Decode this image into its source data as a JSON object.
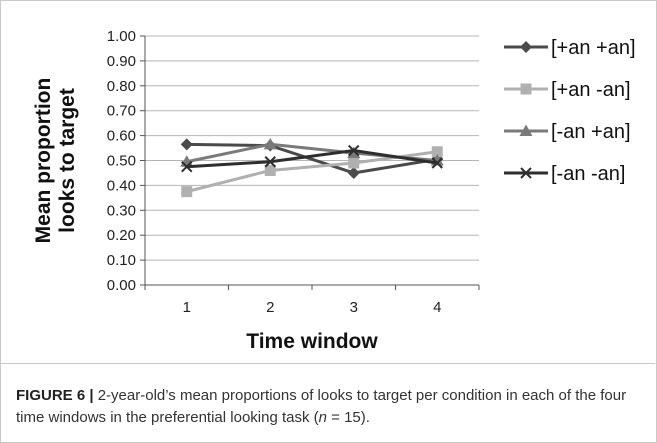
{
  "chart_data": {
    "type": "line",
    "title": "",
    "xlabel": "Time window",
    "ylabel": "Mean proportion looks to target",
    "ylabel_lines": [
      "Mean proportion",
      "looks to target"
    ],
    "categories": [
      "1",
      "2",
      "3",
      "4"
    ],
    "ylim": [
      0,
      1
    ],
    "y_ticks": [
      "0.00",
      "0.10",
      "0.20",
      "0.30",
      "0.40",
      "0.50",
      "0.60",
      "0.70",
      "0.80",
      "0.90",
      "1.00"
    ],
    "grid": true,
    "legend_position": "right",
    "series": [
      {
        "name": "[+an +an]",
        "values": [
          0.565,
          0.56,
          0.45,
          0.505
        ],
        "color": "#4a4a4a",
        "marker": "diamond"
      },
      {
        "name": "[+an -an]",
        "values": [
          0.375,
          0.46,
          0.49,
          0.535
        ],
        "color": "#b0b0b0",
        "marker": "square"
      },
      {
        "name": "[-an +an]",
        "values": [
          0.495,
          0.565,
          0.53,
          0.5
        ],
        "color": "#7a7a7a",
        "marker": "triangle"
      },
      {
        "name": "[-an -an]",
        "values": [
          0.475,
          0.495,
          0.54,
          0.49
        ],
        "color": "#2e2e2e",
        "marker": "x"
      }
    ]
  },
  "caption": {
    "label": "FIGURE 6 |",
    "text_before": " 2-year-old’s mean proportions of looks to target per condition in each of the four time windows in the preferential looking task (",
    "italic": "n",
    "text_after": " = 15)."
  }
}
